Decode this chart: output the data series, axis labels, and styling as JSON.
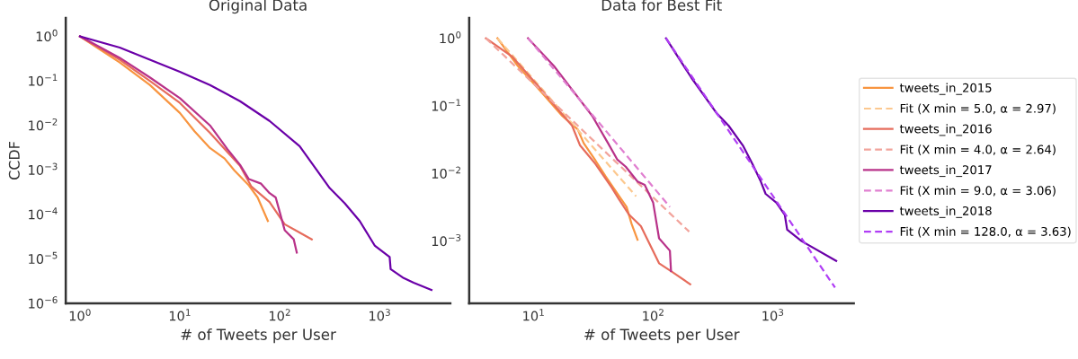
{
  "chart_data": [
    {
      "type": "line",
      "title": "Original Data",
      "xlabel": "# of Tweets per User",
      "ylabel": "CCDF",
      "log": "xy",
      "xlim": [
        0.72,
        5100
      ],
      "ylim": [
        1e-06,
        2.6
      ],
      "xticks": [
        {
          "value": 1,
          "label": "10$^{0}$"
        },
        {
          "value": 10,
          "label": "10$^{1}$"
        },
        {
          "value": 100,
          "label": "10$^{2}$"
        },
        {
          "value": 1000,
          "label": "10$^{3}$"
        }
      ],
      "yticks": [
        {
          "value": 1,
          "label": "10$^{0}$"
        },
        {
          "value": 0.1,
          "label": "10$^{−1}$"
        },
        {
          "value": 0.01,
          "label": "10$^{−2}$"
        },
        {
          "value": 0.001,
          "label": "10$^{−3}$"
        },
        {
          "value": 0.0001,
          "label": "10$^{−4}$"
        },
        {
          "value": 1e-05,
          "label": "10$^{−5}$"
        },
        {
          "value": 1e-06,
          "label": "10$^{−6}$"
        }
      ],
      "series": [
        {
          "color": "#f89540",
          "line_style": "solid",
          "x": [
            1,
            2.5,
            5,
            10,
            14,
            20,
            28,
            35,
            49,
            60,
            76
          ],
          "values": [
            1,
            0.26,
            0.081,
            0.019,
            0.0074,
            0.0031,
            0.0018,
            0.00098,
            0.00045,
            0.00024,
            7.1e-05
          ]
        },
        {
          "color": "#e66c5c",
          "line_style": "solid",
          "x": [
            1,
            2.5,
            5,
            10,
            20,
            40,
            52,
            79,
            112,
            209
          ],
          "values": [
            1,
            0.3,
            0.1,
            0.032,
            0.0068,
            0.00123,
            0.00042,
            0.00019,
            6e-05,
            2.75e-05
          ]
        },
        {
          "color": "#b83289",
          "line_style": "solid",
          "x": [
            1,
            2.5,
            5,
            10,
            20,
            30,
            40,
            49,
            65,
            79,
            91,
            100,
            112,
            138,
            148
          ],
          "values": [
            1,
            0.33,
            0.12,
            0.041,
            0.01,
            0.0029,
            0.0013,
            0.00062,
            0.00049,
            0.0003,
            0.00024,
            0.000112,
            4.4e-05,
            2.75e-05,
            1.38e-05
          ]
        },
        {
          "color": "#6a00a8",
          "line_style": "solid",
          "x": [
            1,
            2.5,
            5,
            10,
            20,
            40,
            79,
            158,
            224,
            316,
            447,
            631,
            891,
            1259,
            1288,
            1738,
            2188,
            3300
          ],
          "values": [
            1,
            0.56,
            0.3,
            0.16,
            0.081,
            0.035,
            0.0126,
            0.0034,
            0.00115,
            0.00039,
            0.000178,
            7.1e-05,
            2e-05,
            1.1e-05,
            5.9e-06,
            3.7e-06,
            2.9e-06,
            2e-06
          ]
        }
      ]
    },
    {
      "type": "line",
      "title": "Data for Best Fit",
      "xlabel": "# of Tweets per User",
      "log": "xy",
      "xlim": [
        2.9,
        4750
      ],
      "ylim": [
        0.00012,
        2
      ],
      "legend": "right",
      "xticks": [
        {
          "value": 10,
          "label": "10$^{1}$"
        },
        {
          "value": 100,
          "label": "10$^{2}$"
        },
        {
          "value": 1000,
          "label": "10$^{3}$"
        }
      ],
      "yticks": [
        {
          "value": 1,
          "label": "10$^{0}$"
        },
        {
          "value": 0.1,
          "label": "10$^{−1}$"
        },
        {
          "value": 0.01,
          "label": "10$^{−2}$"
        },
        {
          "value": 0.001,
          "label": "10$^{−3}$"
        }
      ],
      "series": [
        {
          "name": "tweets_in_2015",
          "color": "#f89540",
          "line_style": "solid",
          "x": [
            5,
            7.4,
            11.7,
            17.4,
            23.4,
            26.3,
            33,
            40,
            52,
            60,
            66,
            74
          ],
          "values": [
            1,
            0.39,
            0.158,
            0.071,
            0.045,
            0.028,
            0.0155,
            0.0091,
            0.0046,
            0.0032,
            0.0018,
            0.00105
          ]
        },
        {
          "name": "Fit (X min = 5.0, α = 2.97)",
          "color": "#fcc88f",
          "line_style": "dashed",
          "x": [
            5,
            72
          ],
          "values": [
            1,
            0.0046
          ]
        },
        {
          "name": "tweets_in_2016",
          "color": "#e66c5c",
          "line_style": "solid",
          "x": [
            4,
            6.6,
            11,
            15.5,
            21,
            24.5,
            33,
            45,
            52,
            63,
            79,
            112,
            141,
            204
          ],
          "values": [
            1,
            0.54,
            0.195,
            0.095,
            0.051,
            0.026,
            0.0138,
            0.0062,
            0.0041,
            0.00245,
            0.00166,
            0.00047,
            0.00036,
            0.00023
          ]
        },
        {
          "name": "Fit (X min = 4.0, α = 2.64)",
          "color": "#f2a39b",
          "line_style": "dashed",
          "x": [
            4,
            200
          ],
          "values": [
            1,
            0.00138
          ]
        },
        {
          "name": "tweets_in_2017",
          "color": "#b83289",
          "line_style": "solid",
          "x": [
            9,
            14.8,
            21,
            31,
            42,
            50,
            59,
            74,
            85,
            100,
            112,
            138,
            141
          ],
          "values": [
            1,
            0.39,
            0.174,
            0.071,
            0.028,
            0.0162,
            0.0126,
            0.0076,
            0.0068,
            0.0037,
            0.0011,
            0.00072,
            0.00036
          ]
        },
        {
          "name": "Fit (X min = 9.0, α = 3.06)",
          "color": "#e07fd0",
          "line_style": "dashed",
          "x": [
            9,
            138
          ],
          "values": [
            1,
            0.0032
          ]
        },
        {
          "name": "tweets_in_2018",
          "color": "#6a00a8",
          "line_style": "solid",
          "x": [
            128,
            209,
            339,
            427,
            562,
            676,
            794,
            871,
            1072,
            1259,
            1318,
            1738,
            3388
          ],
          "values": [
            1,
            0.26,
            0.078,
            0.051,
            0.026,
            0.0138,
            0.0076,
            0.005,
            0.0037,
            0.00245,
            0.00148,
            0.001,
            0.00051
          ]
        },
        {
          "name": "Fit (X min = 128.0, α = 3.63)",
          "color": "#b03ef5",
          "line_style": "dashed",
          "x": [
            128,
            3311
          ],
          "values": [
            1,
            0.000205
          ]
        }
      ]
    }
  ]
}
